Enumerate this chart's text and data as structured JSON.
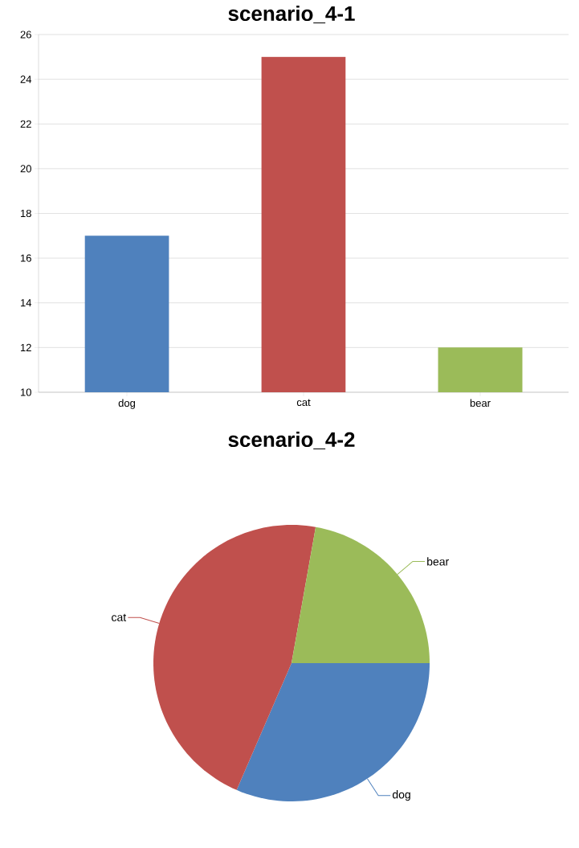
{
  "chart_data": [
    {
      "type": "bar",
      "title": "scenario_4-1",
      "categories": [
        "dog",
        "cat",
        "bear"
      ],
      "values": [
        17,
        25,
        12
      ],
      "colors": [
        "#4f81bd",
        "#c0504d",
        "#9bbb59"
      ],
      "ylim": [
        10,
        26
      ],
      "yticks": [
        10,
        12,
        14,
        16,
        18,
        20,
        22,
        24,
        26
      ],
      "grid": "y"
    },
    {
      "type": "pie",
      "title": "scenario_4-2",
      "categories": [
        "dog",
        "cat",
        "bear"
      ],
      "values": [
        31.5,
        46.3,
        22.2
      ],
      "colors": [
        "#4f81bd",
        "#c0504d",
        "#9bbb59"
      ]
    }
  ]
}
